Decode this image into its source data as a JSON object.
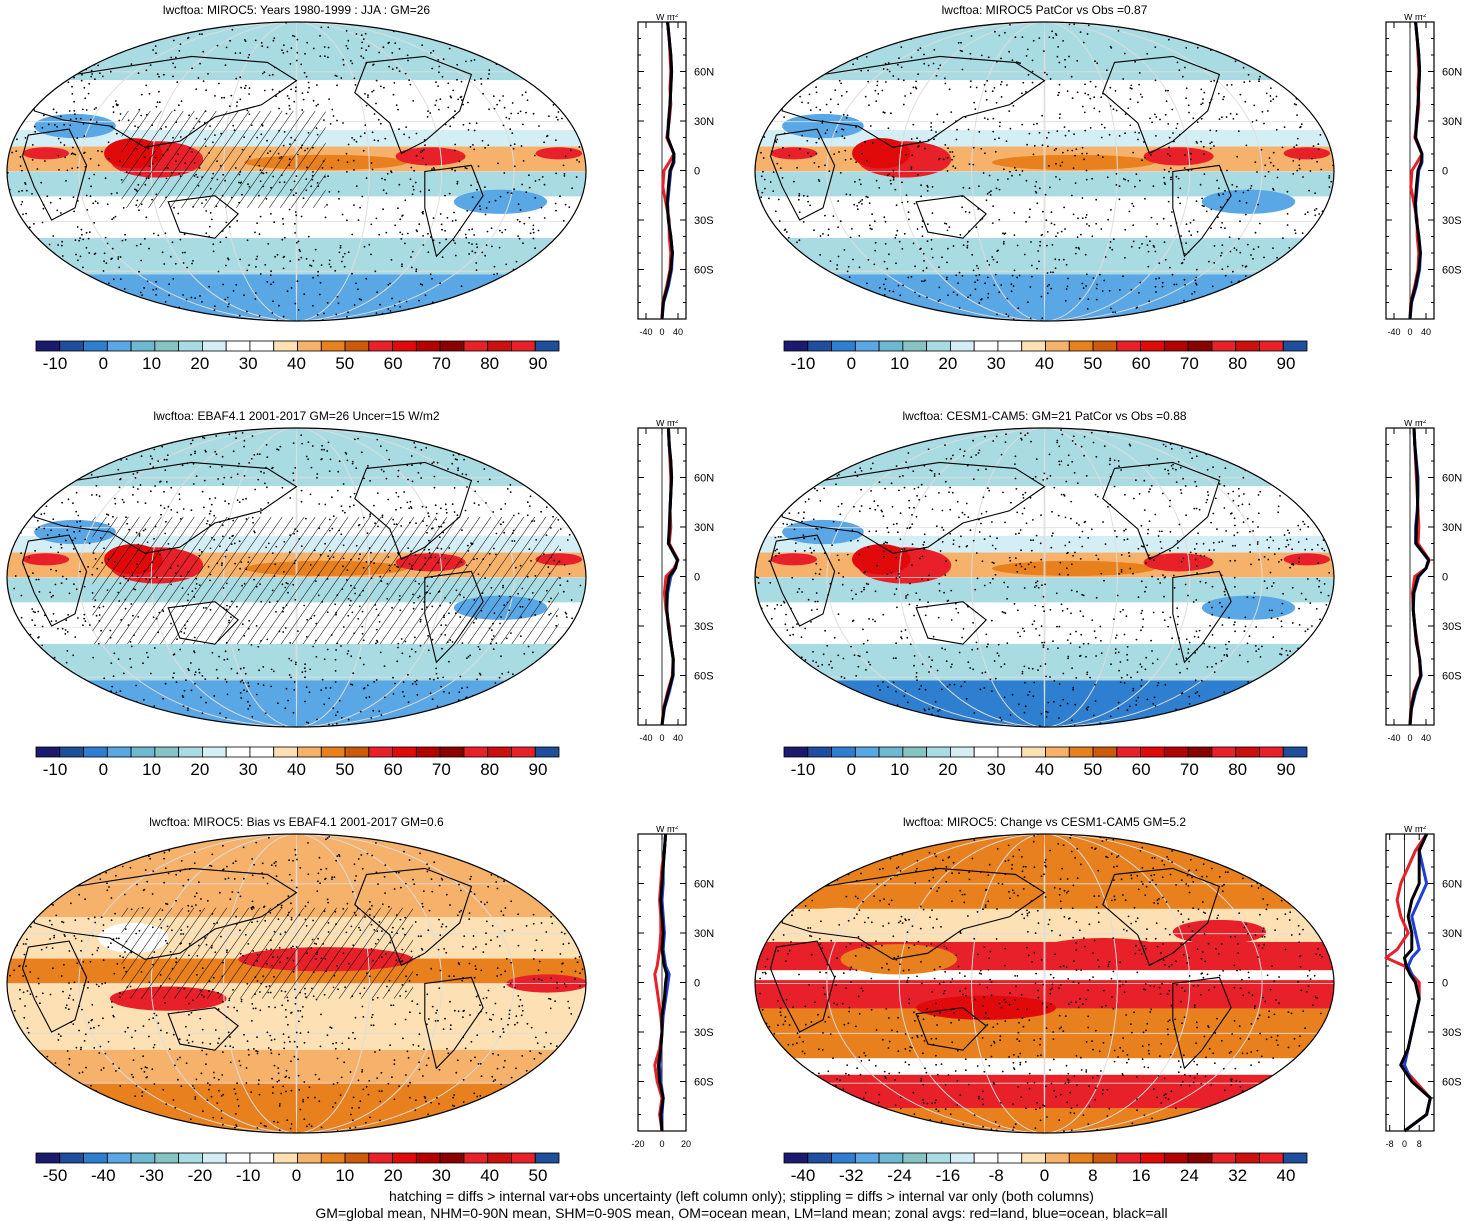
{
  "footnote": {
    "line1": "hatching = diffs > internal var+obs uncertainty (left column only); stippling = diffs > internal var only (both columns)",
    "line2": "GM=global mean, NHM=0-90N mean, SHM=0-90S mean, OM=ocean mean, LM=land mean; zonal avgs: red=land, blue=ocean, black=all"
  },
  "colors": {
    "land": "#e8202a",
    "ocean": "#1f3fd8",
    "all": "#000000",
    "levels": [
      "#1a1a6e",
      "#1f4e9c",
      "#2f7fd0",
      "#5aa7e6",
      "#86c3c3",
      "#a9dbe3",
      "#d4eef6",
      "#ffffff",
      "#ffffff",
      "#fde0b4",
      "#f6b26b",
      "#e8801e",
      "#cc5a0a",
      "#e8202a",
      "#e00a0a",
      "#b40000",
      "#8a0000",
      "#e8202a",
      "#cc1010",
      "#1f4e9c"
    ]
  },
  "chart_data": [
    {
      "type": "heatmap",
      "title": "lwcftoa: MIROC5: Years 1980-1999 : JJA : GM=26",
      "colorbar_ticks": [
        "-10",
        "0",
        "10",
        "20",
        "30",
        "40",
        "50",
        "60",
        "70",
        "80",
        "90"
      ],
      "zonal": {
        "unit": "W m",
        "unit_sup": "-2",
        "x_ticks": [
          "-40",
          "0",
          "40"
        ],
        "x_range": [
          -60,
          60
        ],
        "lat_ticks": [
          "60N",
          "30N",
          "0",
          "30S",
          "60S"
        ],
        "lat_values": [
          60,
          30,
          0,
          -30,
          -60
        ],
        "lat": [
          -90,
          -80,
          -70,
          -60,
          -50,
          -40,
          -30,
          -20,
          -10,
          0,
          5,
          10,
          20,
          30,
          40,
          50,
          60,
          70,
          80,
          90
        ],
        "land": [
          0,
          2,
          12,
          20,
          22,
          18,
          18,
          10,
          2,
          5,
          18,
          30,
          12,
          18,
          22,
          20,
          22,
          20,
          18,
          14
        ],
        "ocean": [
          0,
          4,
          16,
          24,
          26,
          22,
          16,
          14,
          18,
          22,
          30,
          30,
          14,
          16,
          20,
          22,
          24,
          22,
          18,
          14
        ],
        "all": [
          0,
          3,
          14,
          22,
          26,
          22,
          16,
          13,
          16,
          20,
          28,
          30,
          14,
          17,
          20,
          22,
          24,
          22,
          18,
          14
        ]
      }
    },
    {
      "type": "heatmap",
      "title": "lwcftoa: MIROC5 PatCor vs Obs =0.87",
      "colorbar_ticks": [
        "-10",
        "0",
        "10",
        "20",
        "30",
        "40",
        "50",
        "60",
        "70",
        "80",
        "90"
      ],
      "zonal": {
        "unit": "W m",
        "unit_sup": "-2",
        "x_ticks": [
          "-40",
          "0",
          "40"
        ],
        "x_range": [
          -60,
          60
        ],
        "lat_ticks": [
          "60N",
          "30N",
          "0",
          "30S",
          "60S"
        ],
        "lat_values": [
          60,
          30,
          0,
          -30,
          -60
        ],
        "lat": [
          -90,
          -80,
          -70,
          -60,
          -50,
          -40,
          -30,
          -20,
          -10,
          0,
          5,
          10,
          20,
          30,
          40,
          50,
          60,
          70,
          80,
          90
        ],
        "land": [
          0,
          2,
          12,
          20,
          22,
          18,
          18,
          10,
          2,
          5,
          18,
          30,
          12,
          18,
          22,
          20,
          22,
          20,
          18,
          14
        ],
        "ocean": [
          0,
          4,
          16,
          24,
          26,
          22,
          16,
          14,
          18,
          22,
          30,
          30,
          14,
          16,
          20,
          22,
          24,
          22,
          18,
          14
        ],
        "all": [
          0,
          3,
          14,
          22,
          26,
          22,
          16,
          13,
          16,
          20,
          28,
          30,
          14,
          17,
          20,
          22,
          24,
          22,
          18,
          14
        ]
      }
    },
    {
      "type": "heatmap",
      "title": "lwcftoa: EBAF4.1 2001-2017 GM=26 Uncer=15 W/m2",
      "colorbar_ticks": [
        "-10",
        "0",
        "10",
        "20",
        "30",
        "40",
        "50",
        "60",
        "70",
        "80",
        "90"
      ],
      "zonal": {
        "unit": "W m",
        "unit_sup": "-2",
        "x_ticks": [
          "-40",
          "0",
          "40"
        ],
        "x_range": [
          -60,
          60
        ],
        "lat_ticks": [
          "60N",
          "30N",
          "0",
          "30S",
          "60S"
        ],
        "lat_values": [
          60,
          30,
          0,
          -30,
          -60
        ],
        "lat": [
          -90,
          -80,
          -70,
          -60,
          -50,
          -40,
          -30,
          -20,
          -10,
          0,
          5,
          10,
          20,
          30,
          40,
          50,
          60,
          70,
          80,
          90
        ],
        "land": [
          0,
          4,
          14,
          26,
          28,
          22,
          18,
          10,
          6,
          10,
          30,
          40,
          18,
          22,
          20,
          22,
          22,
          20,
          18,
          16
        ],
        "ocean": [
          0,
          6,
          18,
          28,
          28,
          22,
          16,
          12,
          14,
          22,
          34,
          38,
          16,
          18,
          20,
          22,
          24,
          22,
          18,
          16
        ],
        "all": [
          0,
          5,
          16,
          27,
          28,
          22,
          16,
          12,
          12,
          18,
          33,
          39,
          16,
          19,
          20,
          22,
          24,
          22,
          18,
          16
        ]
      }
    },
    {
      "type": "heatmap",
      "title": "lwcftoa: CESM1-CAM5: GM=21 PatCor vs Obs =0.88",
      "colorbar_ticks": [
        "-10",
        "0",
        "10",
        "20",
        "30",
        "40",
        "50",
        "60",
        "70",
        "80",
        "90"
      ],
      "zonal": {
        "unit": "W m",
        "unit_sup": "-2",
        "x_ticks": [
          "-40",
          "0",
          "40"
        ],
        "x_range": [
          -60,
          60
        ],
        "lat_ticks": [
          "60N",
          "30N",
          "0",
          "30S",
          "60S"
        ],
        "lat_values": [
          60,
          30,
          0,
          -30,
          -60
        ],
        "lat": [
          -90,
          -80,
          -70,
          -60,
          -50,
          -40,
          -30,
          -20,
          -10,
          0,
          5,
          10,
          20,
          30,
          40,
          50,
          60,
          70,
          80,
          90
        ],
        "land": [
          0,
          2,
          10,
          26,
          24,
          18,
          12,
          8,
          6,
          12,
          40,
          48,
          20,
          22,
          20,
          18,
          16,
          14,
          12,
          10
        ],
        "ocean": [
          0,
          4,
          14,
          28,
          24,
          16,
          12,
          8,
          10,
          22,
          40,
          46,
          14,
          14,
          18,
          20,
          20,
          16,
          12,
          10
        ],
        "all": [
          0,
          3,
          12,
          27,
          24,
          16,
          12,
          8,
          9,
          20,
          40,
          47,
          15,
          16,
          19,
          19,
          18,
          15,
          12,
          10
        ]
      }
    },
    {
      "type": "heatmap",
      "title": "lwcftoa: MIROC5: Bias vs EBAF4.1 2001-2017 GM=0.6",
      "colorbar_ticks": [
        "-50",
        "-40",
        "-30",
        "-20",
        "-10",
        "0",
        "10",
        "20",
        "30",
        "40",
        "50"
      ],
      "zonal": {
        "unit": "W m",
        "unit_sup": "-2",
        "x_ticks": [
          "-20",
          "0",
          "20"
        ],
        "x_range": [
          -20,
          20
        ],
        "lat_ticks": [
          "60N",
          "30N",
          "0",
          "30S",
          "60S"
        ],
        "lat_values": [
          60,
          30,
          0,
          -30,
          -60
        ],
        "lat": [
          -90,
          -80,
          -70,
          -60,
          -50,
          -40,
          -30,
          -20,
          -10,
          0,
          5,
          10,
          20,
          30,
          40,
          50,
          60,
          70,
          80,
          90
        ],
        "land": [
          0,
          -2,
          0,
          -4,
          -6,
          -2,
          0,
          -1,
          -3,
          -5,
          -6,
          -4,
          -2,
          -1,
          -1,
          -2,
          -1,
          0,
          2,
          3
        ],
        "ocean": [
          0,
          0,
          1,
          -1,
          -2,
          -1,
          0,
          1,
          3,
          5,
          6,
          3,
          1,
          2,
          1,
          0,
          1,
          1,
          2,
          3
        ],
        "all": [
          0,
          -1,
          1,
          -2,
          -3,
          -1,
          0,
          0,
          2,
          3,
          4,
          2,
          0,
          1,
          0,
          -1,
          0,
          1,
          2,
          3
        ]
      }
    },
    {
      "type": "heatmap",
      "title": "lwcftoa: MIROC5: Change vs CESM1-CAM5 GM=5.2",
      "colorbar_ticks": [
        "-40",
        "-32",
        "-24",
        "-16",
        "-8",
        "0",
        "8",
        "16",
        "24",
        "32",
        "40"
      ],
      "zonal": {
        "unit": "W m",
        "unit_sup": "-2",
        "x_ticks": [
          "-8",
          "0",
          "8"
        ],
        "x_range": [
          -10,
          16
        ],
        "lat_ticks": [
          "60N",
          "30N",
          "0",
          "30S",
          "60S"
        ],
        "lat_values": [
          60,
          30,
          0,
          -30,
          -60
        ],
        "lat": [
          -90,
          -80,
          -70,
          -60,
          -50,
          -40,
          -30,
          -20,
          -10,
          0,
          5,
          10,
          15,
          20,
          30,
          40,
          50,
          60,
          70,
          80,
          90
        ],
        "land": [
          0,
          12,
          14,
          6,
          -2,
          2,
          4,
          6,
          8,
          8,
          4,
          0,
          -10,
          -4,
          2,
          -2,
          -4,
          -2,
          2,
          6,
          12
        ],
        "ocean": [
          0,
          12,
          14,
          4,
          0,
          2,
          4,
          6,
          8,
          6,
          4,
          2,
          4,
          8,
          6,
          4,
          8,
          12,
          10,
          8,
          12
        ],
        "all": [
          0,
          12,
          14,
          4,
          -2,
          2,
          4,
          6,
          8,
          6,
          3,
          1,
          0,
          4,
          4,
          2,
          4,
          8,
          8,
          8,
          12
        ]
      }
    }
  ]
}
